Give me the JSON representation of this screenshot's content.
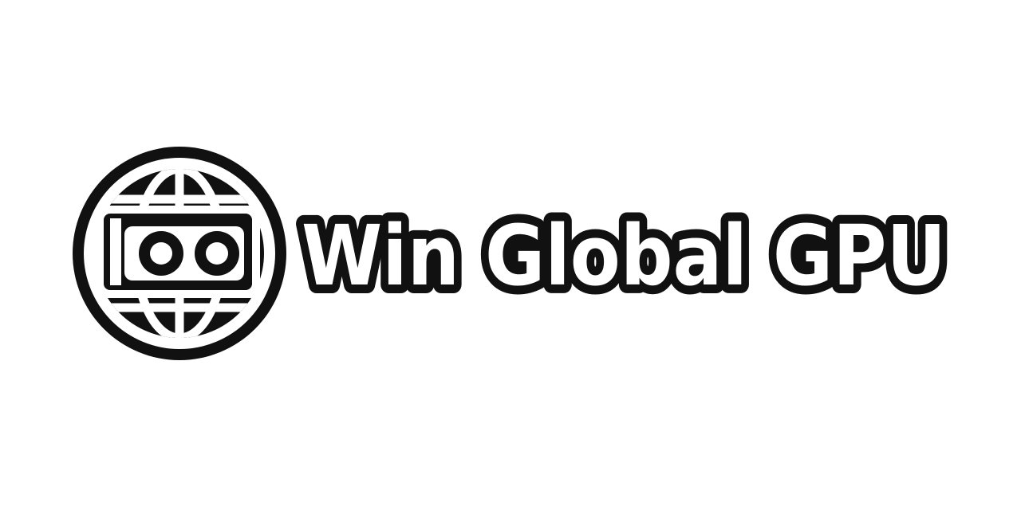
{
  "logo": {
    "brand_name": "Win Global GPU",
    "icon": "globe-gpu-icon",
    "colors": {
      "ink": "#111111",
      "fill": "#ffffff",
      "background": "#ffffff"
    }
  }
}
